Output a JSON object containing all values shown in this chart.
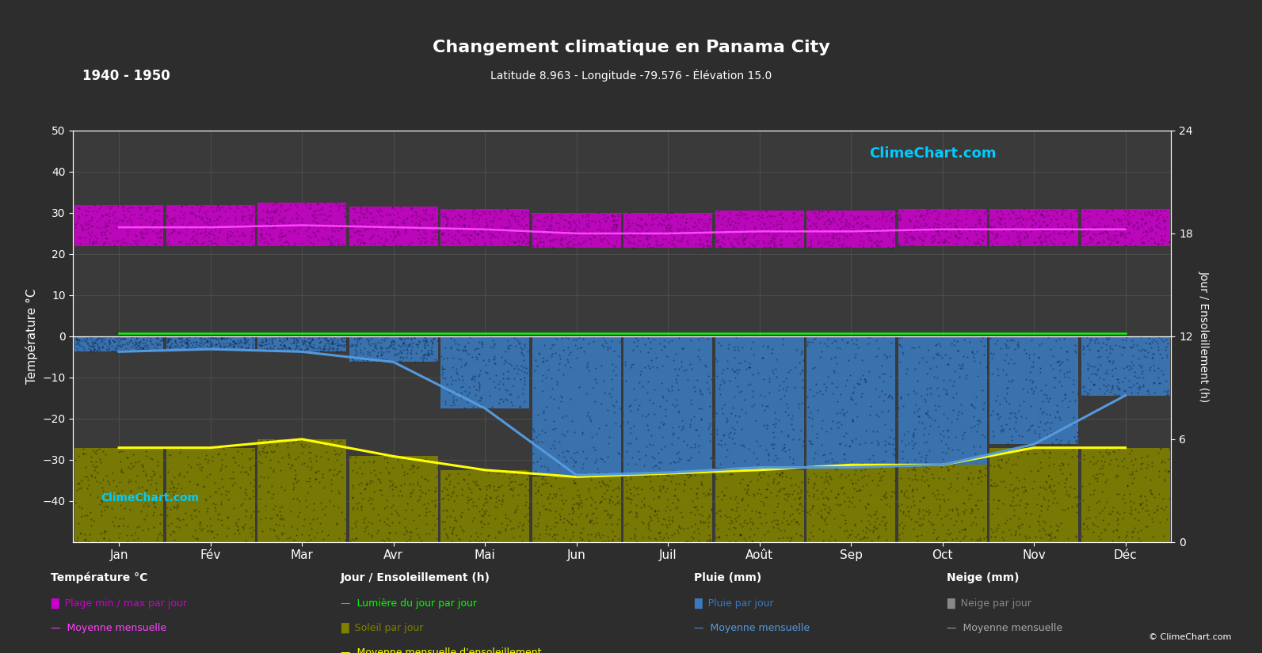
{
  "title": "Changement climatique en Panama City",
  "subtitle": "Latitude 8.963 - Longitude -79.576 - Élévation 15.0",
  "period": "1940 - 1950",
  "background_color": "#2d2d2d",
  "plot_bg_color": "#3a3a3a",
  "grid_color": "#555555",
  "text_color": "#ffffff",
  "zero_line_color": "#ffffff",
  "months": [
    "Jan",
    "Fév",
    "Mar",
    "Avr",
    "Mai",
    "Jun",
    "Juil",
    "Août",
    "Sep",
    "Oct",
    "Nov",
    "Déc"
  ],
  "temp_ylim": [
    -50,
    50
  ],
  "temp_bar_min": [
    22.0,
    22.0,
    22.0,
    22.0,
    22.0,
    21.5,
    21.5,
    21.5,
    21.5,
    22.0,
    22.0,
    22.0
  ],
  "temp_bar_max": [
    32.0,
    32.0,
    32.5,
    31.5,
    31.0,
    30.0,
    30.0,
    30.5,
    30.5,
    31.0,
    31.0,
    31.0
  ],
  "temp_mean_monthly": [
    26.5,
    26.5,
    27.0,
    26.5,
    26.0,
    25.0,
    25.0,
    25.5,
    25.5,
    26.0,
    26.0,
    26.0
  ],
  "daylight_monthly": [
    12.2,
    12.2,
    12.2,
    12.2,
    12.2,
    12.2,
    12.2,
    12.2,
    12.2,
    12.2,
    12.2,
    12.2
  ],
  "sunshine_mean_monthly": [
    5.5,
    5.5,
    6.0,
    5.0,
    4.2,
    3.8,
    4.0,
    4.2,
    4.5,
    4.5,
    5.5,
    5.5
  ],
  "rain_bar_mean": [
    3.0,
    2.5,
    3.0,
    5.0,
    14.0,
    27.0,
    26.5,
    25.5,
    25.5,
    25.0,
    21.0,
    11.5
  ],
  "rain_mean_monthly": [
    3.0,
    2.5,
    3.0,
    5.0,
    14.0,
    27.0,
    26.5,
    25.5,
    25.5,
    25.0,
    21.0,
    11.5
  ],
  "colors": {
    "temp_bar": "#cc00cc",
    "temp_mean_line": "#ff44ff",
    "sunshine_bar": "#808000",
    "daylight_line": "#00ff00",
    "sunshine_mean_line": "#ffff00",
    "rain_bar": "#3a7abf",
    "rain_mean_line": "#5599dd",
    "clime_text": "#00ccff",
    "snow_bar": "#888888",
    "snow_mean_line": "#aaaaaa"
  }
}
